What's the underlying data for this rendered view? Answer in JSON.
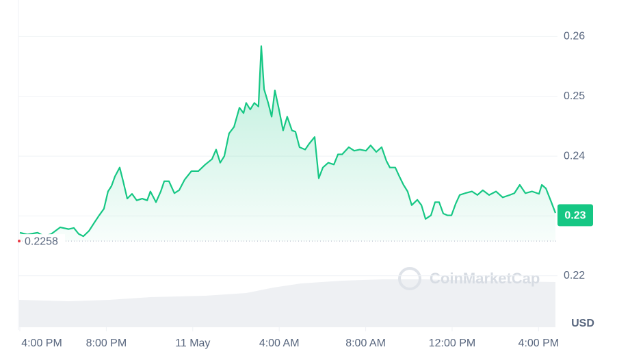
{
  "chart_data": {
    "type": "line",
    "x": [
      0,
      0.35,
      0.82,
      1.14,
      1.46,
      1.87,
      2.25,
      2.5,
      2.72,
      2.94,
      3.2,
      3.45,
      3.67,
      3.89,
      4.08,
      4.24,
      4.4,
      4.62,
      4.78,
      4.97,
      5.19,
      5.41,
      5.66,
      5.89,
      6.04,
      6.3,
      6.52,
      6.68,
      6.9,
      7.15,
      7.37,
      7.63,
      7.94,
      8.26,
      8.58,
      8.89,
      9.08,
      9.27,
      9.46,
      9.68,
      9.91,
      10.16,
      10.35,
      10.47,
      10.66,
      10.85,
      11.04,
      11.17,
      11.3,
      11.49,
      11.65,
      11.8,
      11.99,
      12.18,
      12.37,
      12.59,
      12.75,
      12.94,
      13.2,
      13.39,
      13.64,
      13.83,
      14.02,
      14.27,
      14.53,
      14.72,
      14.91,
      15.22,
      15.47,
      15.73,
      16.01,
      16.23,
      16.49,
      16.74,
      16.96,
      17.12,
      17.37,
      17.56,
      17.75,
      17.94,
      18.13,
      18.39,
      18.58,
      18.77,
      19.02,
      19.21,
      19.4,
      19.59,
      19.78,
      19.97,
      20.16,
      20.35,
      20.6,
      20.92,
      21.17,
      21.42,
      21.71,
      22.03,
      22.34,
      22.66,
      22.88,
      23.13,
      23.39,
      23.7,
      24.02,
      24.15,
      24.34,
      24.59,
      24.78
    ],
    "series": [
      {
        "color": "#16c784",
        "values": [
          0.2272,
          0.2269,
          0.2272,
          0.2266,
          0.227,
          0.2281,
          0.2278,
          0.228,
          0.227,
          0.2266,
          0.2275,
          0.2289,
          0.2301,
          0.2312,
          0.2341,
          0.235,
          0.2366,
          0.2381,
          0.2358,
          0.2329,
          0.2337,
          0.2326,
          0.2329,
          0.2326,
          0.2341,
          0.2323,
          0.2341,
          0.2358,
          0.2358,
          0.2338,
          0.2343,
          0.2361,
          0.2375,
          0.2375,
          0.2386,
          0.2395,
          0.2411,
          0.2389,
          0.24,
          0.2438,
          0.2449,
          0.2481,
          0.2472,
          0.2489,
          0.2478,
          0.2489,
          0.2483,
          0.2584,
          0.2512,
          0.2489,
          0.2466,
          0.251,
          0.2478,
          0.2443,
          0.2466,
          0.2443,
          0.2441,
          0.2415,
          0.2411,
          0.2421,
          0.2432,
          0.2363,
          0.2381,
          0.2389,
          0.2386,
          0.2403,
          0.2403,
          0.2415,
          0.2409,
          0.2411,
          0.2409,
          0.2418,
          0.2407,
          0.2415,
          0.2392,
          0.2381,
          0.2381,
          0.2366,
          0.2352,
          0.2341,
          0.2318,
          0.2327,
          0.2318,
          0.2295,
          0.2301,
          0.2323,
          0.2323,
          0.2304,
          0.2301,
          0.2301,
          0.232,
          0.2335,
          0.2338,
          0.2341,
          0.2335,
          0.2343,
          0.2335,
          0.2341,
          0.2331,
          0.2335,
          0.2338,
          0.2352,
          0.2338,
          0.2341,
          0.2337,
          0.2352,
          0.2346,
          0.2323,
          0.2305
        ]
      }
    ],
    "xlim": [
      0,
      24.78
    ],
    "xticks": [
      {
        "value": 0,
        "label": "4:00 PM"
      },
      {
        "value": 4,
        "label": "8:00 PM"
      },
      {
        "value": 8,
        "label": "11 May"
      },
      {
        "value": 12,
        "label": "4:00 AM"
      },
      {
        "value": 16,
        "label": "8:00 AM"
      },
      {
        "value": 20,
        "label": "12:00 PM"
      },
      {
        "value": 24,
        "label": "4:00 PM"
      }
    ],
    "ylim": [
      0.2115,
      0.266
    ],
    "yticks": [
      0.22,
      0.23,
      0.24,
      0.25,
      0.26
    ],
    "grid": true,
    "y_unit": "USD",
    "open_price": 0.2258,
    "current_price": 0.23,
    "watermark": "CoinMarketCap"
  }
}
